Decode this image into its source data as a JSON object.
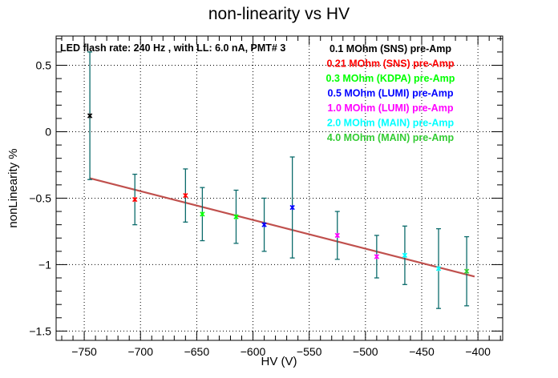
{
  "chart_data": {
    "type": "scatter",
    "title": "non-linearity vs HV",
    "xlabel": "HV (V)",
    "ylabel": "nonLinearity %",
    "xlim": [
      -775,
      -378
    ],
    "ylim": [
      -1.57,
      0.72
    ],
    "xticks": [
      -750,
      -700,
      -650,
      -600,
      -550,
      -500,
      -450,
      -400
    ],
    "yticks": [
      0.5,
      0,
      -0.5,
      -1,
      -1.5
    ],
    "xtick_labels": [
      "−750",
      "−700",
      "−650",
      "−600",
      "−550",
      "−500",
      "−450",
      "−400"
    ],
    "ytick_labels": [
      "0.5",
      "0",
      "−0.5",
      "−1",
      "−1.5"
    ],
    "grid": true,
    "annotation": "LED flash rate: 240 Hz , with LL: 6.0 nA, PMT# 3",
    "legend_position": "top-right",
    "series": [
      {
        "name": "0.1 MOhm (SNS) pre-Amp",
        "color": "#000000",
        "points": [
          {
            "x": -745,
            "y": 0.12,
            "err": 0.48
          }
        ]
      },
      {
        "name": "0.21 MOhm (SNS) pre-Amp",
        "color": "#ff0000",
        "points": [
          {
            "x": -705,
            "y": -0.51,
            "err": 0.19
          },
          {
            "x": -660,
            "y": -0.48,
            "err": 0.2
          }
        ]
      },
      {
        "name": "0.3 MOhm (KDPA) pre-Amp",
        "color": "#00ff00",
        "points": [
          {
            "x": -645,
            "y": -0.62,
            "err": 0.2
          },
          {
            "x": -615,
            "y": -0.64,
            "err": 0.2
          }
        ]
      },
      {
        "name": "0.5 MOhm (LUMI) pre-Amp",
        "color": "#0000ff",
        "points": [
          {
            "x": -590,
            "y": -0.7,
            "err": 0.2
          },
          {
            "x": -565,
            "y": -0.57,
            "err": 0.38
          }
        ]
      },
      {
        "name": "1.0 MOhm (LUMI) pre-Amp",
        "color": "#ff00ff",
        "points": [
          {
            "x": -525,
            "y": -0.78,
            "err": 0.18
          },
          {
            "x": -490,
            "y": -0.94,
            "err": 0.16
          }
        ]
      },
      {
        "name": "2.0 MOhm (MAIN) pre-Amp",
        "color": "#00ffff",
        "points": [
          {
            "x": -465,
            "y": -0.93,
            "err": 0.22
          },
          {
            "x": -435,
            "y": -1.03,
            "err": 0.3
          }
        ]
      },
      {
        "name": "4.0 MOhm (MAIN) pre-Amp",
        "color": "#33cc33",
        "points": [
          {
            "x": -410,
            "y": -1.05,
            "err": 0.26
          }
        ]
      }
    ],
    "error_bar_color": "#0b6b6b",
    "fit_line": {
      "color": "#c0504d",
      "x": [
        -745,
        -403
      ],
      "y": [
        -0.35,
        -1.09
      ]
    }
  }
}
